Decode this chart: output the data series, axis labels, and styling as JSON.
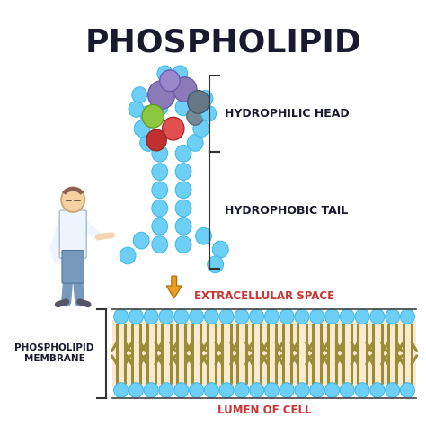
{
  "title": "PHOSPHOLIPID",
  "bg_color": "#ffffff",
  "light_blue": "#6ecff6",
  "light_blue_edge": "#3ab8e8",
  "tail_color": "#9b8c3a",
  "tail_bg": "#faebd0",
  "head_purple": "#8b7ab8",
  "head_gray": "#667788",
  "head_green": "#8dc63f",
  "head_red": "#e05050",
  "head_darkred": "#c03030",
  "label_head": "HYDROPHILIC HEAD",
  "label_tail": "HYDROPHOBIC TAIL",
  "label_extra": "EXTRACELLULAR SPACE",
  "label_lumen": "LUMEN OF CELL",
  "label_membrane": "PHOSPHOLIPID\nMEMBRANE",
  "membrane_label_color": "#cc3333",
  "arrow_color": "#e8a020",
  "bracket_color": "#333333",
  "dark_text": "#1a1a2e"
}
